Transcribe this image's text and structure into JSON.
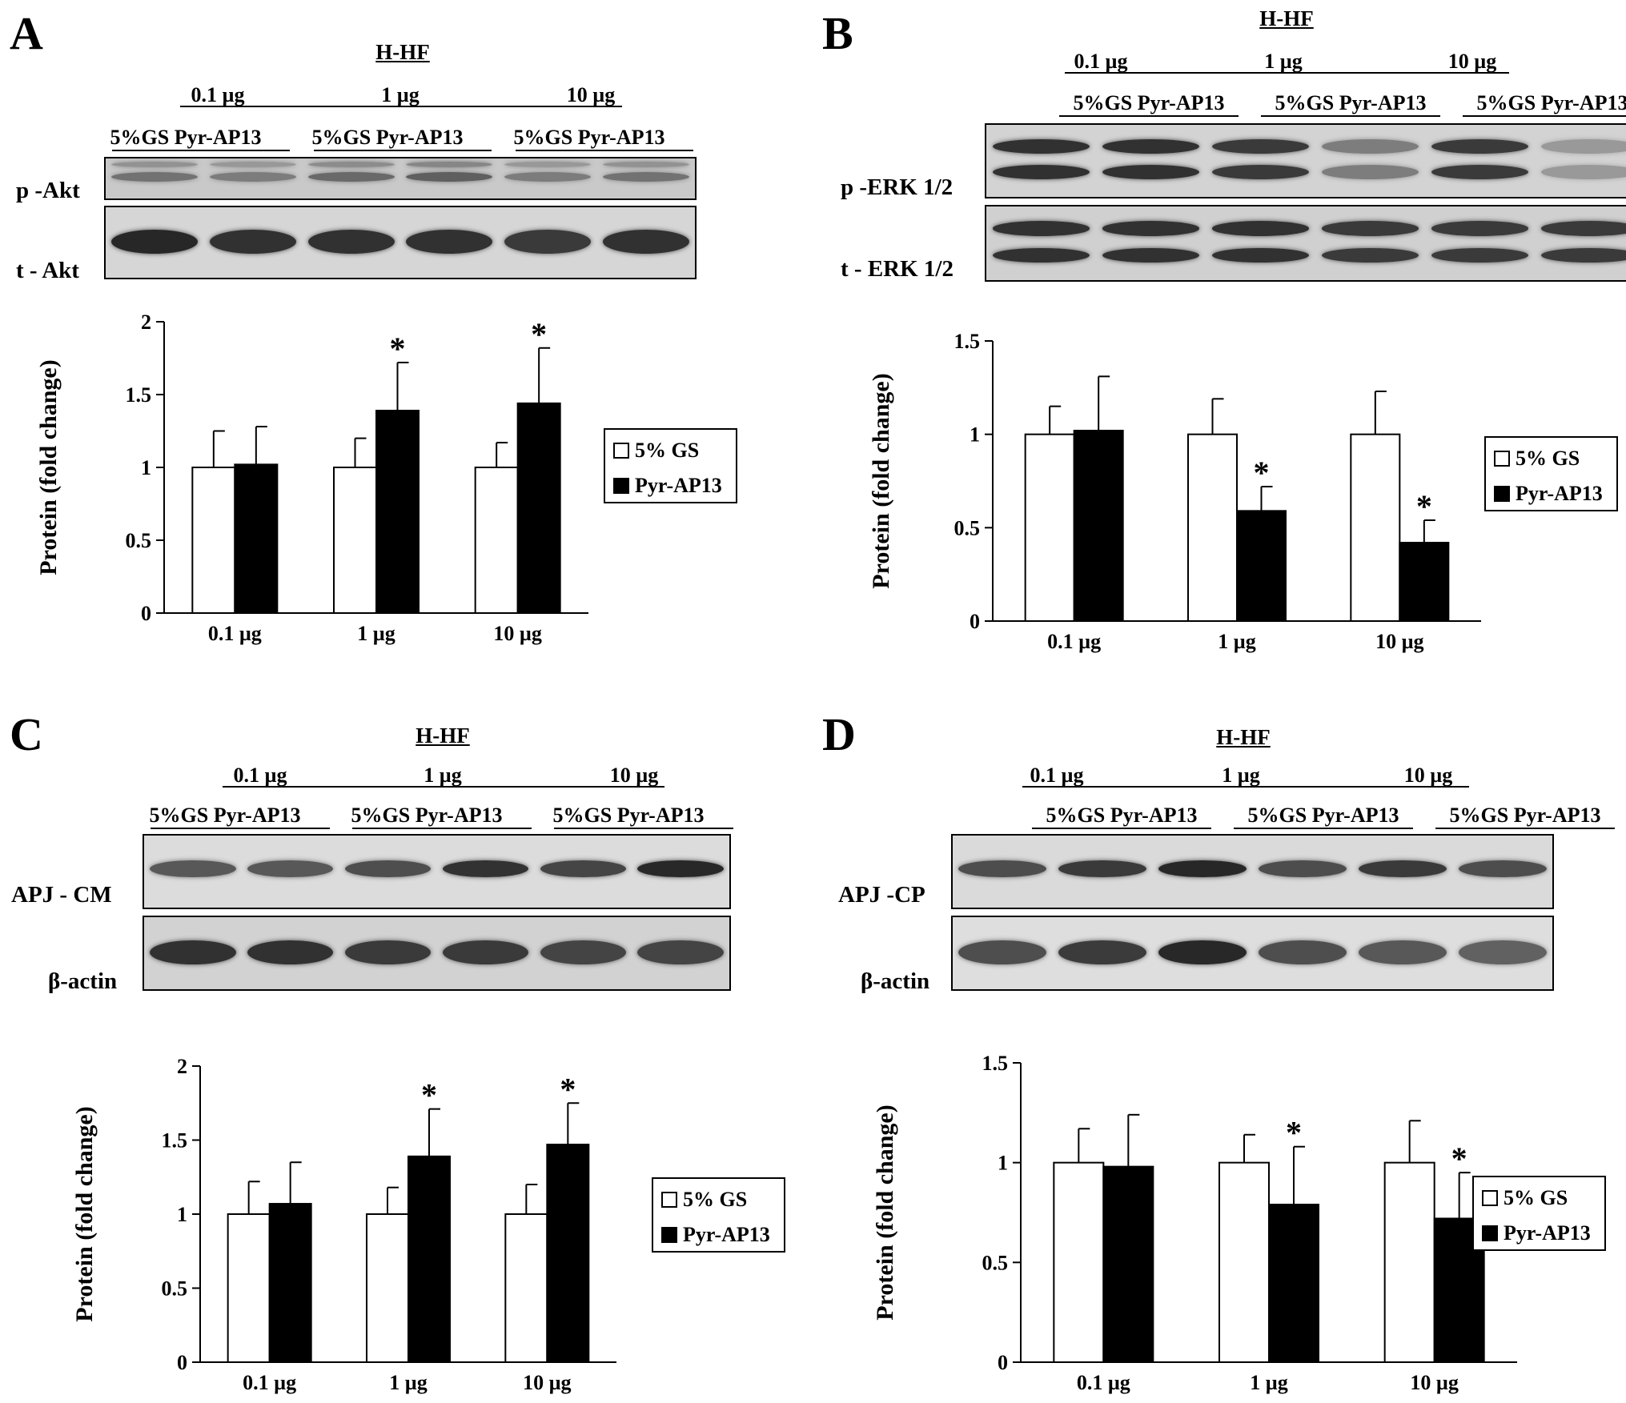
{
  "panels": [
    {
      "id": "a",
      "letter": "A",
      "group_label": "H-HF",
      "doses": [
        "0.1 µg",
        "1 µg",
        "10 µg"
      ],
      "lane_group_labels": [
        "5%GS Pyr-AP13",
        "5%GS Pyr-AP13",
        "5%GS Pyr-AP13"
      ],
      "blots": [
        {
          "label": "p -Akt",
          "band_intensity": [
            0.55,
            0.5,
            0.6,
            0.65,
            0.5,
            0.55
          ]
        },
        {
          "label": "t - Akt",
          "band_intensity": [
            0.95,
            0.9,
            0.9,
            0.9,
            0.85,
            0.9
          ]
        }
      ]
    },
    {
      "id": "b",
      "letter": "B",
      "group_label": "H-HF",
      "doses": [
        "0.1 µg",
        "1 µg",
        "10 µg"
      ],
      "lane_group_labels": [
        "5%GS Pyr-AP13",
        "5%GS Pyr-AP13",
        "5%GS Pyr-AP13"
      ],
      "blots": [
        {
          "label": "p -ERK 1/2",
          "band_intensity": [
            0.9,
            0.9,
            0.85,
            0.5,
            0.85,
            0.35
          ]
        },
        {
          "label": "t - ERK 1/2",
          "band_intensity": [
            0.9,
            0.9,
            0.9,
            0.85,
            0.85,
            0.85
          ]
        }
      ]
    },
    {
      "id": "c",
      "letter": "C",
      "group_label": "H-HF",
      "doses": [
        "0.1 µg",
        "1 µg",
        "10 µg"
      ],
      "lane_group_labels": [
        "5%GS Pyr-AP13",
        "5%GS Pyr-AP13",
        "5%GS Pyr-AP13"
      ],
      "blots": [
        {
          "label": "APJ - CM",
          "band_intensity": [
            0.7,
            0.7,
            0.75,
            0.9,
            0.8,
            0.95
          ]
        },
        {
          "label": "β-actin",
          "band_intensity": [
            0.9,
            0.9,
            0.85,
            0.85,
            0.8,
            0.8
          ]
        }
      ]
    },
    {
      "id": "d",
      "letter": "D",
      "group_label": "H-HF",
      "doses": [
        "0.1 µg",
        "1 µg",
        "10 µg"
      ],
      "lane_group_labels": [
        "5%GS Pyr-AP13",
        "5%GS Pyr-AP13",
        "5%GS Pyr-AP13"
      ],
      "blots": [
        {
          "label": "APJ -CP",
          "band_intensity": [
            0.75,
            0.85,
            0.95,
            0.75,
            0.85,
            0.75
          ]
        },
        {
          "label": "β-actin",
          "band_intensity": [
            0.75,
            0.85,
            0.95,
            0.75,
            0.7,
            0.65
          ]
        }
      ]
    }
  ],
  "chart_data": [
    {
      "panel": "A",
      "type": "bar",
      "categories": [
        "0.1 µg",
        "1 µg",
        "10 µg"
      ],
      "series": [
        {
          "name": "5% GS",
          "color": "#ffffff",
          "values": [
            1.0,
            1.0,
            1.0
          ],
          "errors": [
            0.25,
            0.2,
            0.17
          ]
        },
        {
          "name": "Pyr-AP13",
          "color": "#000000",
          "values": [
            1.02,
            1.39,
            1.44
          ],
          "errors": [
            0.26,
            0.33,
            0.38
          ]
        }
      ],
      "significant": [
        [
          false,
          false,
          false
        ],
        [
          false,
          true,
          true
        ]
      ],
      "significance_marker": "*",
      "xlabel": "",
      "ylabel": "Protein (fold change)",
      "ylim": [
        0,
        2
      ],
      "yticks": [
        0,
        0.5,
        1,
        1.5,
        2
      ],
      "ytick_labels": [
        "0",
        "0.5",
        "1",
        "1.5",
        "2"
      ],
      "legend_position": "right"
    },
    {
      "panel": "B",
      "type": "bar",
      "categories": [
        "0.1 µg",
        "1 µg",
        "10 µg"
      ],
      "series": [
        {
          "name": "5% GS",
          "color": "#ffffff",
          "values": [
            1.0,
            1.0,
            1.0
          ],
          "errors": [
            0.15,
            0.19,
            0.23
          ]
        },
        {
          "name": "Pyr-AP13",
          "color": "#000000",
          "values": [
            1.02,
            0.59,
            0.42
          ],
          "errors": [
            0.29,
            0.13,
            0.12
          ]
        }
      ],
      "significant": [
        [
          false,
          false,
          false
        ],
        [
          false,
          true,
          true
        ]
      ],
      "significance_marker": "*",
      "xlabel": "",
      "ylabel": "Protein (fold change)",
      "ylim": [
        0,
        1.5
      ],
      "yticks": [
        0,
        0.5,
        1,
        1.5
      ],
      "ytick_labels": [
        "0",
        "0.5",
        "1",
        "1.5"
      ],
      "legend_position": "right"
    },
    {
      "panel": "C",
      "type": "bar",
      "categories": [
        "0.1 µg",
        "1 µg",
        "10 µg"
      ],
      "series": [
        {
          "name": "5% GS",
          "color": "#ffffff",
          "values": [
            1.0,
            1.0,
            1.0
          ],
          "errors": [
            0.22,
            0.18,
            0.2
          ]
        },
        {
          "name": "Pyr-AP13",
          "color": "#000000",
          "values": [
            1.07,
            1.39,
            1.47
          ],
          "errors": [
            0.28,
            0.32,
            0.28
          ]
        }
      ],
      "significant": [
        [
          false,
          false,
          false
        ],
        [
          false,
          true,
          true
        ]
      ],
      "significance_marker": "*",
      "xlabel": "",
      "ylabel": "Protein (fold change)",
      "ylim": [
        0,
        2
      ],
      "yticks": [
        0,
        0.5,
        1,
        1.5,
        2
      ],
      "ytick_labels": [
        "0",
        "0.5",
        "1",
        "1.5",
        "2"
      ],
      "legend_position": "right"
    },
    {
      "panel": "D",
      "type": "bar",
      "categories": [
        "0.1 µg",
        "1 µg",
        "10 µg"
      ],
      "series": [
        {
          "name": "5% GS",
          "color": "#ffffff",
          "values": [
            1.0,
            1.0,
            1.0
          ],
          "errors": [
            0.17,
            0.14,
            0.21
          ]
        },
        {
          "name": "Pyr-AP13",
          "color": "#000000",
          "values": [
            0.98,
            0.79,
            0.72
          ],
          "errors": [
            0.26,
            0.29,
            0.23
          ]
        }
      ],
      "significant": [
        [
          false,
          false,
          false
        ],
        [
          false,
          true,
          true
        ]
      ],
      "significance_marker": "*",
      "xlabel": "",
      "ylabel": "Protein (fold change)",
      "ylim": [
        0,
        1.5
      ],
      "yticks": [
        0,
        0.5,
        1,
        1.5
      ],
      "ytick_labels": [
        "0",
        "0.5",
        "1",
        "1.5"
      ],
      "legend_position": "right"
    }
  ]
}
